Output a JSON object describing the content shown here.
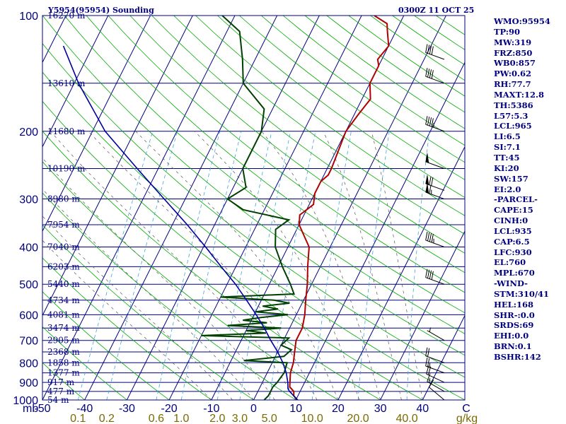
{
  "header": {
    "title": "Y5954(95954) Sounding",
    "time": "0300Z 11 OCT 25"
  },
  "indices": [
    "WMO:95954",
    "TP:90",
    "MW:319",
    "FRZ:850",
    "WB0:857",
    "PW:0.62",
    "RH:77.7",
    "MAXT:12.8",
    "TH:5386",
    "L57:5.3",
    "LCL:965",
    "LI:6.5",
    "SI:7.1",
    "TT:45",
    "KI:20",
    "SW:157",
    "EI:2.0",
    "-PARCEL-",
    "CAPE:15",
    "CINH:0",
    "LCL:935",
    "CAP:6.5",
    "LFC:930",
    "EL:760",
    "MPL:670",
    "-WIND-",
    "STM:310/41",
    "HEL:168",
    "SHR-:0.0",
    "SRDS:69",
    "EHI:0.0",
    "BRN:0.1",
    "BSHR:142"
  ],
  "colors": {
    "isobar": "#000080",
    "isotherm": "#000080",
    "dry_adiabat": "#00aa00",
    "mixing_ratio": "#3fa8d8",
    "moist_adiabat": "#555555",
    "temperature": "#b00000",
    "dewpoint": "#004000",
    "parcel": "#0000a0",
    "axis_label": "#000080",
    "mixing_label": "#7a6a00"
  },
  "chart_data": {
    "type": "line",
    "title": "Y5954(95954) Sounding",
    "axes": {
      "y_pressure_ticks": [
        "100",
        "200",
        "300",
        "400",
        "500",
        "600",
        "700",
        "800",
        "900",
        "1000"
      ],
      "y_unit": "mb",
      "x_temperature_ticks": [
        "-50",
        "-40",
        "-30",
        "-20",
        "-10",
        "0",
        "10",
        "20",
        "30",
        "40"
      ],
      "x_end_label": "C",
      "mixing_ratio_ticks": [
        "0.1",
        "0.2",
        "0.6",
        "1.0",
        "2.0",
        "3.0",
        "5.0",
        "10.0",
        "20.0",
        "40.0"
      ],
      "mixing_ratio_unit": "g/kg",
      "xlim_C": [
        -50,
        50
      ],
      "ylim_hPa": [
        1000,
        100
      ],
      "y_scale": "log"
    },
    "height_labels": [
      {
        "p": 100,
        "label": "16270 m"
      },
      {
        "p": 150,
        "label": "13610 m"
      },
      {
        "p": 200,
        "label": "11680 m"
      },
      {
        "p": 250,
        "label": "10190 m"
      },
      {
        "p": 300,
        "label": "8980 m"
      },
      {
        "p": 350,
        "label": "7954 m"
      },
      {
        "p": 400,
        "label": "7040 m"
      },
      {
        "p": 450,
        "label": "6203 m"
      },
      {
        "p": 500,
        "label": "5440 m"
      },
      {
        "p": 550,
        "label": "4734 m"
      },
      {
        "p": 600,
        "label": "4081 m"
      },
      {
        "p": 650,
        "label": "3474 m"
      },
      {
        "p": 700,
        "label": "2905 m"
      },
      {
        "p": 750,
        "label": "2368 m"
      },
      {
        "p": 800,
        "label": "1858 m"
      },
      {
        "p": 850,
        "label": "1377 m"
      },
      {
        "p": 900,
        "label": "917 m"
      },
      {
        "p": 950,
        "label": "477 m"
      },
      {
        "p": 1000,
        "label": "54 m"
      }
    ],
    "series": [
      {
        "key": "temperature",
        "points": [
          [
            1000,
            10.4
          ],
          [
            975,
            9.0
          ],
          [
            950,
            8.5
          ],
          [
            925,
            7.0
          ],
          [
            900,
            6.5
          ],
          [
            850,
            5.5
          ],
          [
            800,
            5.0
          ],
          [
            750,
            4.0
          ],
          [
            700,
            3.0
          ],
          [
            650,
            3.0
          ],
          [
            600,
            2.0
          ],
          [
            550,
            0.5
          ],
          [
            500,
            -1.0
          ],
          [
            450,
            -3.0
          ],
          [
            400,
            -5.0
          ],
          [
            350,
            -10.0
          ],
          [
            330,
            -11.0
          ],
          [
            320,
            -10.0
          ],
          [
            310,
            -9.0
          ],
          [
            290,
            -10.0
          ],
          [
            280,
            -10.0
          ],
          [
            270,
            -10.0
          ],
          [
            260,
            -9.0
          ],
          [
            250,
            -9.0
          ],
          [
            200,
            -10.0
          ],
          [
            180,
            -9.0
          ],
          [
            165,
            -8.0
          ],
          [
            150,
            -10.0
          ],
          [
            135,
            -10.0
          ],
          [
            130,
            -11.0
          ],
          [
            120,
            -10.0
          ],
          [
            110,
            -12.0
          ],
          [
            105,
            -13.0
          ],
          [
            100,
            -17.0
          ]
        ]
      },
      {
        "key": "dewpoint",
        "points": [
          [
            1000,
            2.5
          ],
          [
            975,
            3.0
          ],
          [
            950,
            3.0
          ],
          [
            925,
            3.0
          ],
          [
            900,
            3.5
          ],
          [
            850,
            4.0
          ],
          [
            800,
            3.5
          ],
          [
            790,
            -7.0
          ],
          [
            770,
            2.0
          ],
          [
            740,
            3.0
          ],
          [
            720,
            0.0
          ],
          [
            690,
            1.0
          ],
          [
            680,
            -20.0
          ],
          [
            670,
            -5.0
          ],
          [
            660,
            -10.0
          ],
          [
            650,
            -2.0
          ],
          [
            640,
            -15.0
          ],
          [
            630,
            -6.0
          ],
          [
            620,
            -12.0
          ],
          [
            610,
            -8.0
          ],
          [
            600,
            -2.0
          ],
          [
            590,
            -10.0
          ],
          [
            580,
            -5.0
          ],
          [
            570,
            -9.0
          ],
          [
            560,
            -3.0
          ],
          [
            550,
            -7.0
          ],
          [
            540,
            -20.0
          ],
          [
            530,
            -3.0
          ],
          [
            500,
            -5.0
          ],
          [
            450,
            -9.0
          ],
          [
            400,
            -13.0
          ],
          [
            360,
            -15.0
          ],
          [
            340,
            -13.0
          ],
          [
            320,
            -25.0
          ],
          [
            300,
            -30.0
          ],
          [
            280,
            -27.0
          ],
          [
            250,
            -30.0
          ],
          [
            200,
            -30.0
          ],
          [
            175,
            -32.0
          ],
          [
            150,
            -40.0
          ],
          [
            130,
            -43.0
          ],
          [
            110,
            -47.0
          ],
          [
            100,
            -53.0
          ]
        ]
      },
      {
        "key": "parcel",
        "points": [
          [
            1000,
            10.4
          ],
          [
            950,
            7.5
          ],
          [
            935,
            6.8
          ],
          [
            900,
            6.0
          ],
          [
            850,
            4.5
          ],
          [
            800,
            2.5
          ],
          [
            750,
            0.0
          ],
          [
            700,
            -3.0
          ],
          [
            650,
            -6.0
          ],
          [
            600,
            -9.5
          ],
          [
            550,
            -13.5
          ],
          [
            500,
            -18.0
          ],
          [
            450,
            -23.5
          ],
          [
            400,
            -29.5
          ],
          [
            350,
            -36.5
          ],
          [
            300,
            -45.0
          ],
          [
            250,
            -55.0
          ],
          [
            200,
            -67.0
          ],
          [
            150,
            -79.0
          ],
          [
            120,
            -87.0
          ]
        ]
      }
    ],
    "wind_barbs": [
      {
        "p": 1000,
        "dir": 310,
        "kt": 10
      },
      {
        "p": 950,
        "dir": 300,
        "kt": 15
      },
      {
        "p": 900,
        "dir": 295,
        "kt": 20
      },
      {
        "p": 850,
        "dir": 290,
        "kt": 25
      },
      {
        "p": 800,
        "dir": 290,
        "kt": 20
      },
      {
        "p": 700,
        "dir": 300,
        "kt": 5
      },
      {
        "p": 500,
        "dir": 290,
        "kt": 40
      },
      {
        "p": 400,
        "dir": 290,
        "kt": 45
      },
      {
        "p": 300,
        "dir": 290,
        "kt": 65
      },
      {
        "p": 285,
        "dir": 290,
        "kt": 70
      },
      {
        "p": 250,
        "dir": 290,
        "kt": 50
      },
      {
        "p": 200,
        "dir": 290,
        "kt": 45
      },
      {
        "p": 150,
        "dir": 290,
        "kt": 40
      },
      {
        "p": 130,
        "dir": 290,
        "kt": 40
      }
    ]
  }
}
